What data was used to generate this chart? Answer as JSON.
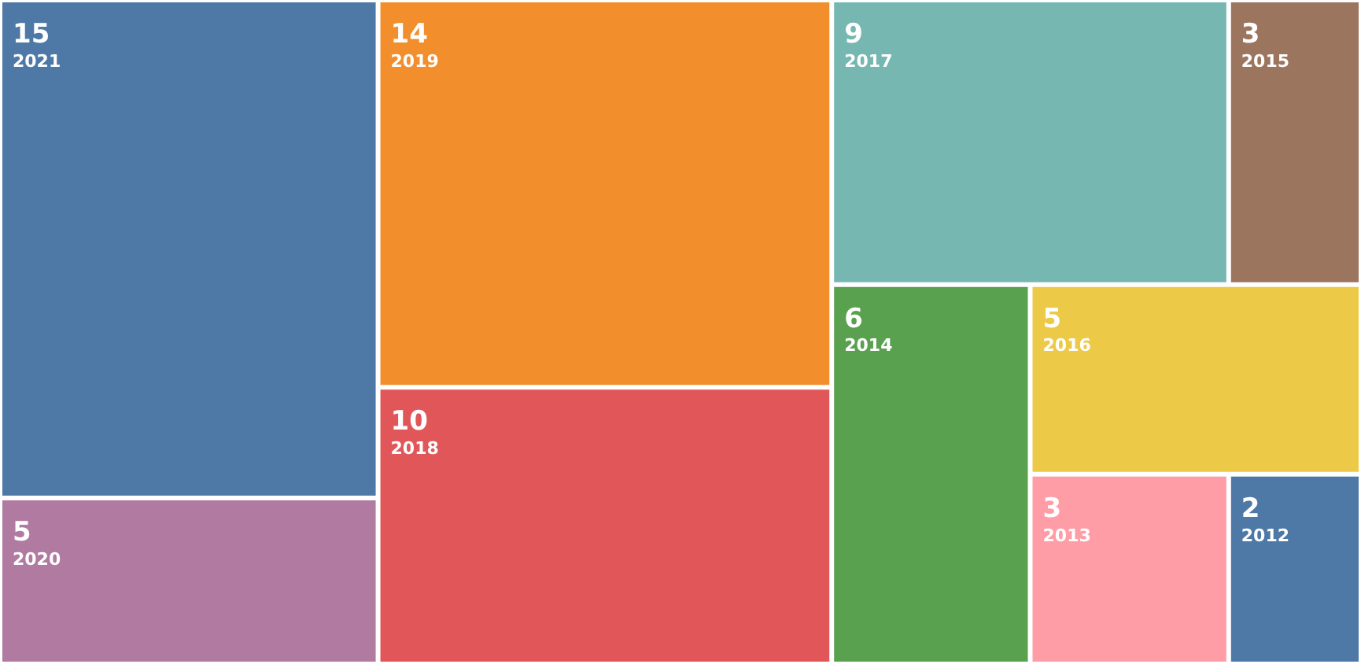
{
  "chart_data": {
    "type": "other",
    "categories": [
      "2021",
      "2020",
      "2019",
      "2018",
      "2017",
      "2015",
      "2014",
      "2016",
      "2013",
      "2012"
    ],
    "values": [
      15,
      5,
      14,
      10,
      9,
      3,
      6,
      5,
      3,
      2
    ],
    "colors": [
      "#4e79a7",
      "#b07aa1",
      "#f28e2b",
      "#e15759",
      "#76b7b2",
      "#9c755f",
      "#59a14f",
      "#edc948",
      "#ff9da7",
      "#4e79a7"
    ],
    "data_labels": true
  }
}
